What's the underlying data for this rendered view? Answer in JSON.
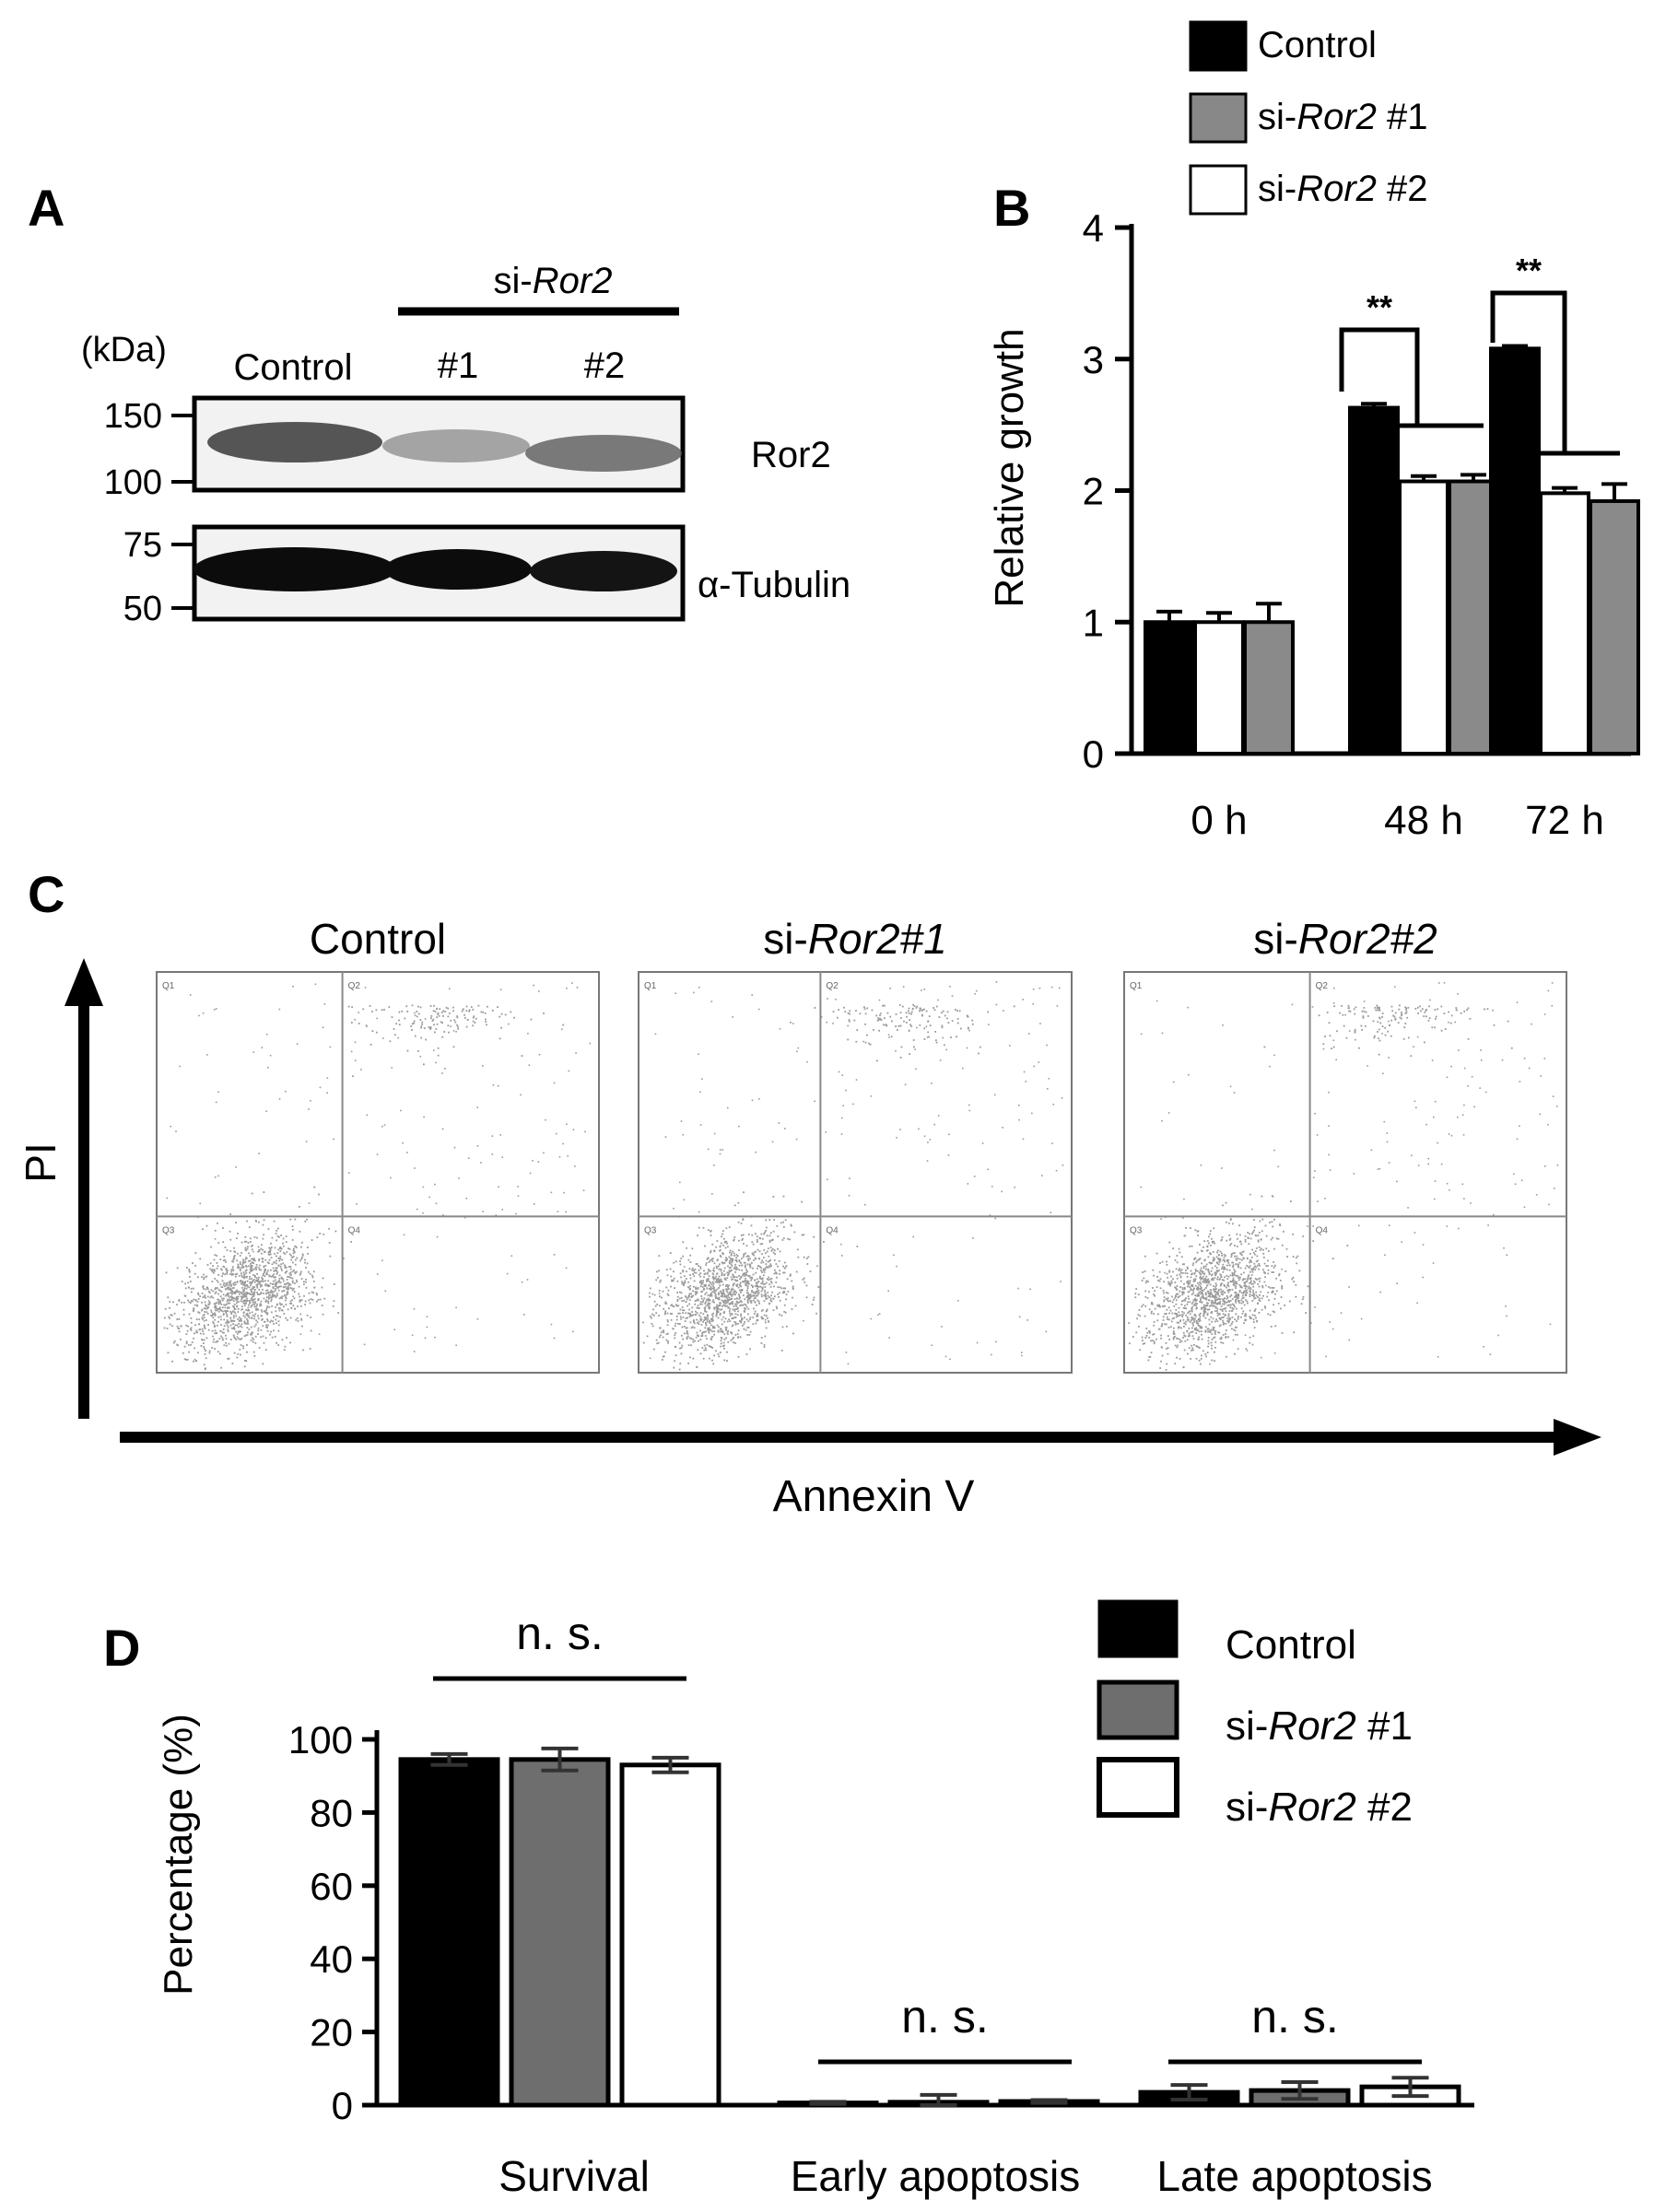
{
  "panels": {
    "a": {
      "letter": "A",
      "group_label_prefix": "si-",
      "group_label_italic": "Ror2",
      "kda_label": "(kDa)",
      "lanes": [
        "Control",
        "#1",
        "#2"
      ],
      "markers": [
        "150",
        "100",
        "75",
        "50"
      ],
      "blots": [
        "Ror2",
        "α-Tubulin"
      ]
    },
    "b": {
      "letter": "B"
    },
    "c": {
      "letter": "C",
      "plots": [
        {
          "title_plain": "Control",
          "title_italic": ""
        },
        {
          "title_plain": "si-",
          "title_italic": "Ror2#1"
        },
        {
          "title_plain": "si-",
          "title_italic": "Ror2#2"
        }
      ],
      "quadrants": [
        "Q1",
        "Q2",
        "Q3",
        "Q4"
      ],
      "y_axis_label": "PI",
      "x_axis_label": "Annexin V"
    },
    "d": {
      "letter": "D"
    }
  },
  "legend": [
    {
      "prefix": "",
      "italic": "",
      "suffix": "Control",
      "color": "#000000"
    },
    {
      "prefix": "si-",
      "italic": "Ror2",
      "suffix": " #1",
      "color": "#808080"
    },
    {
      "prefix": "si-",
      "italic": "Ror2",
      "suffix": " #2",
      "color": "#ffffff"
    }
  ],
  "colors": {
    "control": "#000000",
    "si1_b": "#8a8a8a",
    "si1_d": "#6e6e6e",
    "si2": "#ffffff"
  },
  "chart_data": [
    {
      "panel": "B",
      "type": "bar",
      "ylabel": "Relative growth",
      "ylim": [
        0,
        4
      ],
      "yticks": [
        0,
        1,
        2,
        3,
        4
      ],
      "categories": [
        "0 h",
        "48 h",
        "72 h"
      ],
      "series": [
        {
          "name": "Control",
          "values": [
            1.0,
            2.63,
            3.08
          ],
          "errors": [
            0.08,
            0.03,
            0.02
          ]
        },
        {
          "name": "si-Ror2 #2",
          "values": [
            1.0,
            2.07,
            1.98
          ],
          "errors": [
            0.07,
            0.04,
            0.04
          ]
        },
        {
          "name": "si-Ror2 #1",
          "values": [
            1.0,
            2.07,
            1.92
          ],
          "errors": [
            0.14,
            0.05,
            0.13
          ]
        }
      ],
      "annotations": [
        "**",
        "**"
      ]
    },
    {
      "panel": "D",
      "type": "bar",
      "ylabel": "Percentage (%)",
      "ylim": [
        0,
        100
      ],
      "yticks": [
        0,
        20,
        40,
        60,
        80,
        100
      ],
      "categories": [
        "Survival",
        "Early apoptosis",
        "Late apoptosis"
      ],
      "series": [
        {
          "name": "Control",
          "values": [
            94.5,
            0.6,
            3.5
          ],
          "errors": [
            1.5,
            0.3,
            2.0
          ]
        },
        {
          "name": "si-Ror2 #1",
          "values": [
            94.5,
            0.8,
            4.0
          ],
          "errors": [
            3.0,
            2.0,
            2.3
          ]
        },
        {
          "name": "si-Ror2 #2",
          "values": [
            93.0,
            1.0,
            5.0
          ],
          "errors": [
            2.0,
            0.4,
            2.5
          ]
        }
      ],
      "annotations": [
        "n. s.",
        "n. s.",
        "n. s."
      ]
    }
  ]
}
